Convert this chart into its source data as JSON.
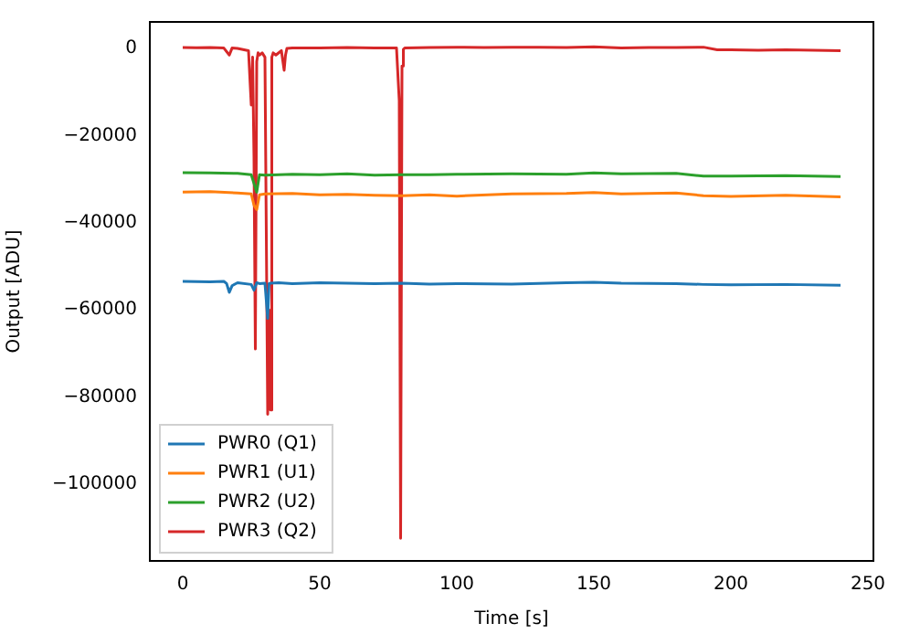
{
  "chart_data": {
    "type": "line",
    "xlabel": "Time [s]",
    "ylabel": "Output [ADU]",
    "xlim": [
      -12,
      252
    ],
    "xticks": [
      0,
      50,
      100,
      150,
      200,
      250
    ],
    "ylim": [
      -117700,
      6100
    ],
    "yticks": [
      {
        "value": 0,
        "label": "0"
      },
      {
        "value": -20000,
        "label": "−20000"
      },
      {
        "value": -40000,
        "label": "−40000"
      },
      {
        "value": -60000,
        "label": "−60000"
      },
      {
        "value": -80000,
        "label": "−80000"
      },
      {
        "value": -100000,
        "label": "−100000"
      }
    ],
    "grid": false,
    "legend": "bottom left",
    "marker": "none",
    "line_style": "solid",
    "series": [
      {
        "name": "PWR0 (Q1)",
        "color": "#1f77b4",
        "x": [
          0,
          10,
          15,
          16,
          17,
          18,
          20,
          25,
          26,
          27,
          28,
          30,
          31,
          31.5,
          32,
          35,
          40,
          50,
          60,
          70,
          80,
          90,
          100,
          120,
          140,
          150,
          160,
          180,
          190,
          200,
          220,
          240
        ],
        "values": [
          -53500,
          -53600,
          -53500,
          -54000,
          -56000,
          -54500,
          -53800,
          -54200,
          -55500,
          -53800,
          -54000,
          -53900,
          -62000,
          -54000,
          -53900,
          -53800,
          -54000,
          -53800,
          -53900,
          -54000,
          -53900,
          -54100,
          -54000,
          -54100,
          -53800,
          -53700,
          -53900,
          -54000,
          -54200,
          -54300,
          -54200,
          -54400
        ]
      },
      {
        "name": "PWR1 (U1)",
        "color": "#ff7f0e",
        "x": [
          0,
          10,
          20,
          25,
          26,
          27,
          28,
          30,
          40,
          50,
          60,
          70,
          80,
          90,
          100,
          120,
          140,
          150,
          160,
          180,
          190,
          200,
          220,
          240
        ],
        "values": [
          -33000,
          -32900,
          -33200,
          -33400,
          -36000,
          -37000,
          -33600,
          -33400,
          -33300,
          -33600,
          -33500,
          -33700,
          -33800,
          -33600,
          -33900,
          -33400,
          -33300,
          -33100,
          -33400,
          -33200,
          -33800,
          -34000,
          -33700,
          -34100
        ]
      },
      {
        "name": "PWR2 (U2)",
        "color": "#2ca02c",
        "x": [
          0,
          10,
          20,
          25,
          26,
          27,
          28,
          30,
          40,
          50,
          60,
          70,
          80,
          90,
          100,
          120,
          140,
          150,
          160,
          180,
          190,
          200,
          220,
          240
        ],
        "values": [
          -28500,
          -28600,
          -28700,
          -29000,
          -31000,
          -33000,
          -29000,
          -29100,
          -28900,
          -29000,
          -28800,
          -29100,
          -29000,
          -29000,
          -28900,
          -28800,
          -28900,
          -28600,
          -28800,
          -28700,
          -29300,
          -29300,
          -29200,
          -29400
        ]
      },
      {
        "name": "PWR3 (Q2)",
        "color": "#d62728",
        "x": [
          0,
          5,
          10,
          15,
          17,
          18,
          20,
          24,
          25,
          25.5,
          26,
          26.5,
          27,
          27.5,
          28,
          29,
          30,
          31,
          31.5,
          32,
          32.5,
          33,
          34,
          36,
          37,
          37.5,
          38,
          40,
          50,
          60,
          70,
          78,
          79,
          79.5,
          80,
          80.5,
          81,
          90,
          100,
          110,
          120,
          130,
          140,
          150,
          160,
          170,
          180,
          190,
          195,
          200,
          210,
          220,
          230,
          240
        ],
        "values": [
          200,
          150,
          200,
          100,
          -1500,
          100,
          0,
          -500,
          -13000,
          -2000,
          -25000,
          -69000,
          -3000,
          -1000,
          -1500,
          -1000,
          -2000,
          -84000,
          -60000,
          -83000,
          -2000,
          -1000,
          -1500,
          -500,
          -5000,
          -1500,
          0,
          100,
          100,
          200,
          100,
          100,
          -12000,
          -112500,
          -4000,
          -200,
          100,
          200,
          300,
          200,
          300,
          300,
          200,
          400,
          100,
          200,
          200,
          300,
          -300,
          -300,
          -400,
          -300,
          -400,
          -500
        ]
      }
    ]
  }
}
